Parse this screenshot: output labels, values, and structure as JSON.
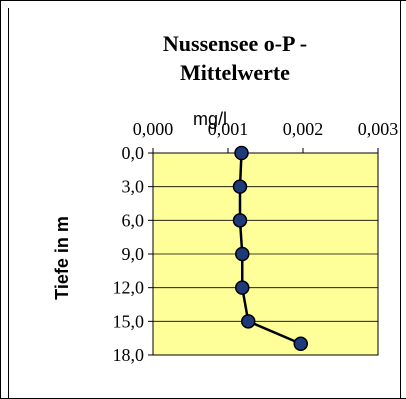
{
  "chart_data": {
    "type": "line",
    "title_line1": "Nussensee o-P -",
    "title_line2": "Mittelwerte",
    "x_unit_label": "mg/l",
    "ylabel": "Tiefe in m",
    "x_ticks": [
      "0,000",
      "0,001",
      "0,002",
      "0,003"
    ],
    "y_ticks": [
      "0,0",
      "3,0",
      "6,0",
      "9,0",
      "12,0",
      "15,0",
      "18,0"
    ],
    "xlim": [
      0,
      0.003
    ],
    "ylim": [
      0,
      18
    ],
    "y_inverted": true,
    "x_axis_position": "top",
    "plot_background": "#FFFF99",
    "line_color": "#000000",
    "marker_color": "#1F3A7A",
    "gridlines": "horizontal",
    "series": [
      {
        "x": [
          0.00118,
          0.00116,
          0.00116,
          0.00119,
          0.00119,
          0.00127,
          0.00197
        ],
        "y": [
          0,
          3,
          6,
          9,
          12,
          15,
          17
        ]
      }
    ]
  }
}
